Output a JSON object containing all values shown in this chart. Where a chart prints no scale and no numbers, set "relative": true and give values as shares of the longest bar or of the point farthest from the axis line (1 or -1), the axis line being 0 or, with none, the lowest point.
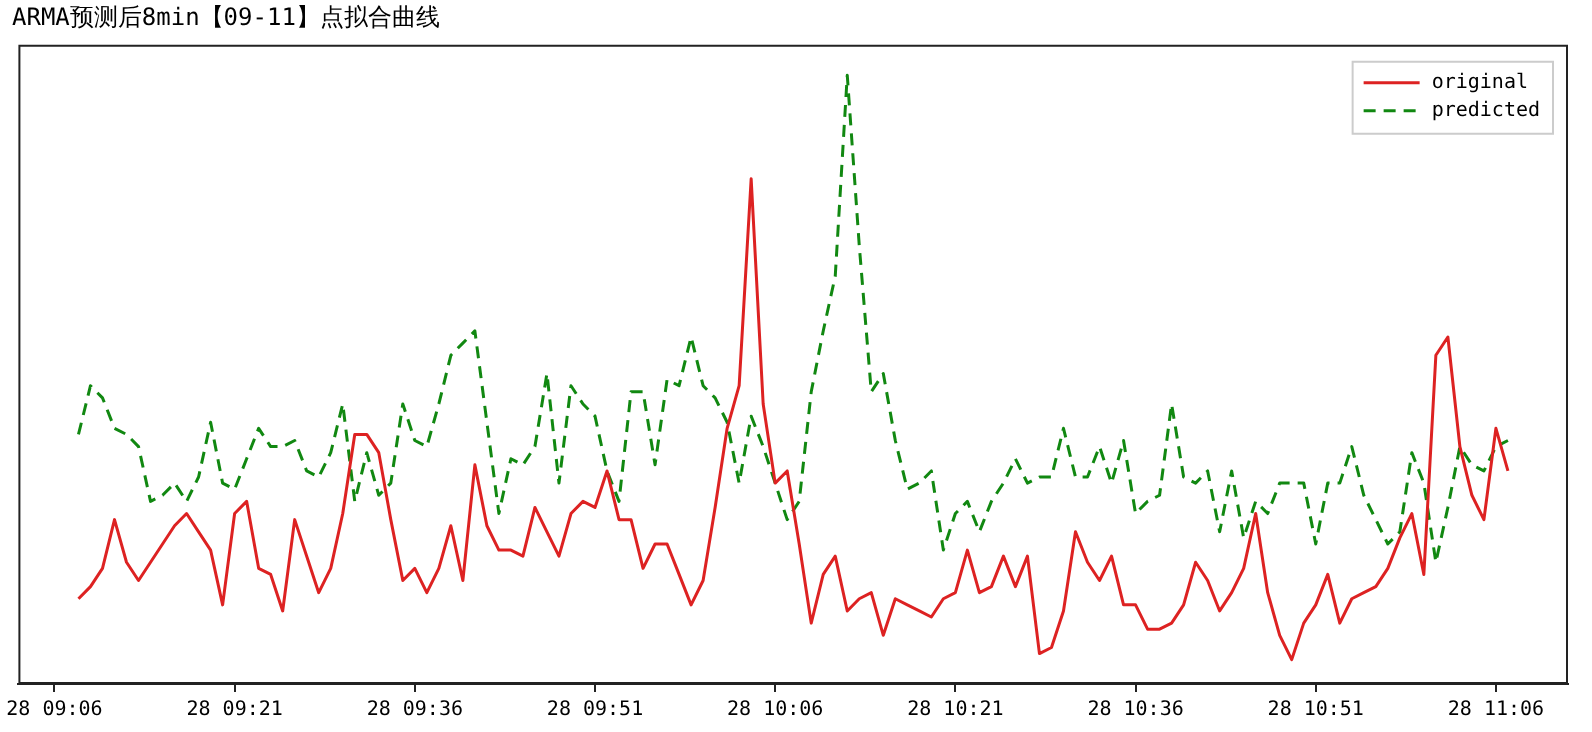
{
  "chart_data": {
    "type": "line",
    "title": "ARMA预测后8min【09-11】点拟合曲线",
    "relative": true,
    "legend": "top right",
    "grid": false,
    "marker": "none",
    "categories": [
      "28 09:06",
      null,
      null,
      null,
      null,
      null,
      null,
      null,
      null,
      null,
      null,
      null,
      null,
      null,
      null,
      "28 09:21",
      null,
      null,
      null,
      null,
      null,
      null,
      null,
      null,
      null,
      null,
      null,
      null,
      null,
      null,
      "28 09:36",
      null,
      null,
      null,
      null,
      null,
      null,
      null,
      null,
      null,
      null,
      null,
      null,
      null,
      null,
      "28 09:51",
      null,
      null,
      null,
      null,
      null,
      null,
      null,
      null,
      null,
      null,
      null,
      null,
      null,
      null,
      "28 10:06",
      null,
      null,
      null,
      null,
      null,
      null,
      null,
      null,
      null,
      null,
      null,
      null,
      null,
      null,
      "28 10:21",
      null,
      null,
      null,
      null,
      null,
      null,
      null,
      null,
      null,
      null,
      null,
      null,
      null,
      null,
      "28 10:36",
      null,
      null,
      null,
      null,
      null,
      null,
      null,
      null,
      null,
      null,
      null,
      null,
      null,
      null,
      "28 10:51",
      null,
      null,
      null,
      null,
      null,
      null,
      null,
      null,
      null,
      null,
      null,
      null,
      null,
      null,
      "28 11:06",
      null
    ],
    "series": [
      {
        "name": "original",
        "color": "#dd2222",
        "line_style": "solid",
        "values": [
          null,
          null,
          0.14,
          0.16,
          0.19,
          0.27,
          0.2,
          0.17,
          0.2,
          0.23,
          0.26,
          0.28,
          0.25,
          0.22,
          0.13,
          0.28,
          0.3,
          0.19,
          0.18,
          0.12,
          0.27,
          0.21,
          0.15,
          0.19,
          0.28,
          0.41,
          0.41,
          0.38,
          0.27,
          0.17,
          0.19,
          0.15,
          0.19,
          0.26,
          0.17,
          0.36,
          0.26,
          0.22,
          0.22,
          0.21,
          0.29,
          0.25,
          0.21,
          0.28,
          0.3,
          0.29,
          0.35,
          0.27,
          0.27,
          0.19,
          0.23,
          0.23,
          0.18,
          0.13,
          0.17,
          0.29,
          0.42,
          0.49,
          0.83,
          0.46,
          0.33,
          0.35,
          0.23,
          0.1,
          0.18,
          0.21,
          0.12,
          0.14,
          0.15,
          0.08,
          0.14,
          0.13,
          0.12,
          0.11,
          0.14,
          0.15,
          0.22,
          0.15,
          0.16,
          0.21,
          0.16,
          0.21,
          0.05,
          0.06,
          0.12,
          0.25,
          0.2,
          0.17,
          0.21,
          0.13,
          0.13,
          0.09,
          0.09,
          0.1,
          0.13,
          0.2,
          0.17,
          0.12,
          0.15,
          0.19,
          0.28,
          0.15,
          0.08,
          0.04,
          0.1,
          0.13,
          0.18,
          0.1,
          0.14,
          0.15,
          0.16,
          0.19,
          0.24,
          0.28,
          0.18,
          0.54,
          0.57,
          0.39,
          0.31,
          0.27,
          0.42,
          0.35
        ]
      },
      {
        "name": "predicted",
        "color": "#118811",
        "line_style": "dashed",
        "values": [
          null,
          null,
          0.41,
          0.49,
          0.47,
          0.42,
          0.41,
          0.39,
          0.3,
          0.31,
          0.33,
          0.3,
          0.34,
          0.43,
          0.33,
          0.32,
          0.37,
          0.42,
          0.39,
          0.39,
          0.4,
          0.35,
          0.34,
          0.38,
          0.46,
          0.3,
          0.38,
          0.31,
          0.33,
          0.46,
          0.4,
          0.39,
          0.46,
          0.54,
          0.56,
          0.58,
          0.43,
          0.28,
          0.37,
          0.36,
          0.39,
          0.51,
          0.33,
          0.49,
          0.46,
          0.44,
          0.35,
          0.3,
          0.48,
          0.48,
          0.36,
          0.5,
          0.49,
          0.57,
          0.49,
          0.47,
          0.43,
          0.33,
          0.44,
          0.39,
          0.33,
          0.27,
          0.3,
          0.48,
          0.58,
          0.67,
          1,
          0.72,
          0.48,
          0.51,
          0.4,
          0.32,
          0.33,
          0.35,
          0.22,
          0.28,
          0.3,
          0.25,
          0.3,
          0.33,
          0.37,
          0.33,
          0.34,
          0.34,
          0.42,
          0.34,
          0.34,
          0.39,
          0.33,
          0.4,
          0.28,
          0.3,
          0.31,
          0.46,
          0.34,
          0.33,
          0.35,
          0.25,
          0.35,
          0.24,
          0.3,
          0.28,
          0.33,
          0.33,
          0.33,
          0.23,
          0.33,
          0.33,
          0.39,
          0.31,
          0.27,
          0.23,
          0.25,
          0.38,
          0.33,
          0.2,
          0.29,
          0.39,
          0.36,
          0.35,
          0.39,
          0.4
        ]
      }
    ]
  }
}
